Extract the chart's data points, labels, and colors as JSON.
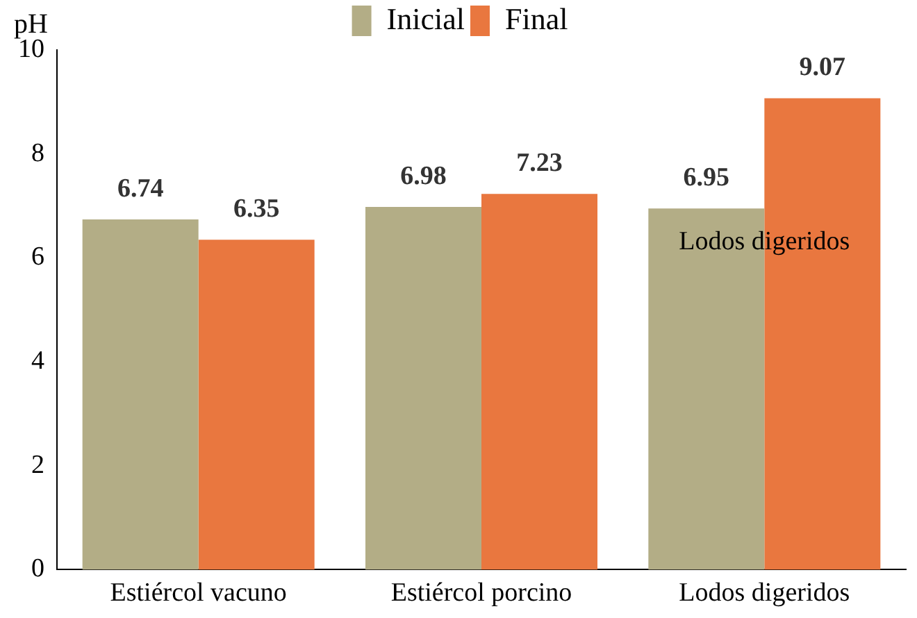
{
  "chart_data": {
    "type": "bar",
    "ylabel": "pH",
    "categories": [
      "Estiércol vacuno",
      "Estiércol porcino",
      "Lodos digeridos"
    ],
    "series": [
      {
        "name": "Inicial",
        "color": "#b3ad86",
        "values": [
          6.74,
          6.98,
          6.95
        ]
      },
      {
        "name": "Final",
        "color": "#e9773f",
        "values": [
          6.35,
          7.23,
          9.07
        ]
      }
    ],
    "ylim": [
      0,
      10
    ],
    "yticks": [
      0,
      2,
      4,
      6,
      8,
      10
    ],
    "grid": false,
    "legend": "top",
    "data_labels": true,
    "annotations": [
      {
        "text": "Lodos digeridos",
        "x": "Lodos digeridos",
        "y": 6.3
      }
    ]
  }
}
